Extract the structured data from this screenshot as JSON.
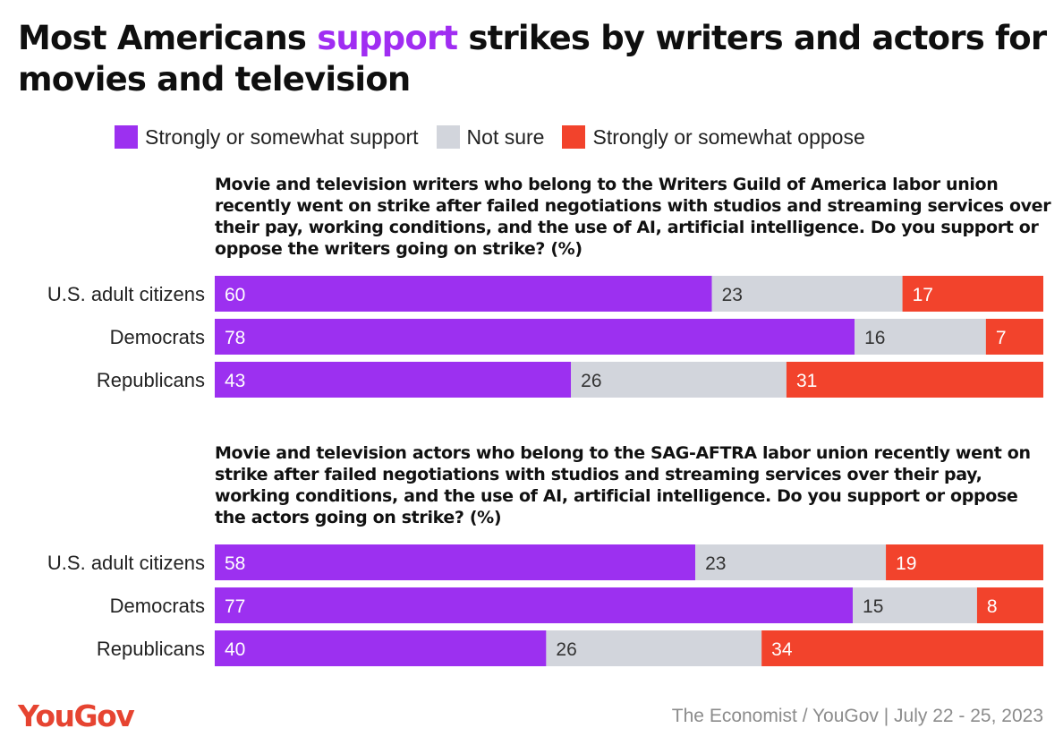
{
  "title": {
    "before": "Most Americans ",
    "accent": "support",
    "after": " strikes by writers and actors for movies and television"
  },
  "legend": [
    {
      "label": "Strongly or somewhat support",
      "color": "#9c30f0"
    },
    {
      "label": "Not sure",
      "color": "#d2d5dc"
    },
    {
      "label": "Strongly or somewhat oppose",
      "color": "#f2432c"
    }
  ],
  "chart_data": [
    {
      "type": "bar",
      "stacked": true,
      "orientation": "horizontal",
      "title": "Movie and television writers who belong to the Writers Guild of America labor union recently went on strike after failed negotiations with studios and streaming services over their pay, working conditions, and the use of AI, artificial intelligence. Do you support or oppose the writers going on strike? (%)",
      "categories": [
        "U.S. adult citizens",
        "Democrats",
        "Republicans"
      ],
      "series": [
        {
          "name": "Strongly or somewhat support",
          "values": [
            60,
            78,
            43
          ]
        },
        {
          "name": "Not sure",
          "values": [
            23,
            16,
            26
          ]
        },
        {
          "name": "Strongly or somewhat oppose",
          "values": [
            17,
            7,
            31
          ]
        }
      ]
    },
    {
      "type": "bar",
      "stacked": true,
      "orientation": "horizontal",
      "title": "Movie and television actors who belong to the SAG-AFTRA labor union recently went on strike after failed negotiations with studios and streaming services over their pay, working conditions, and the use of AI, artificial intelligence. Do you support or oppose the actors going on strike? (%)",
      "categories": [
        "U.S. adult citizens",
        "Democrats",
        "Republicans"
      ],
      "series": [
        {
          "name": "Strongly or somewhat support",
          "values": [
            58,
            77,
            40
          ]
        },
        {
          "name": "Not sure",
          "values": [
            23,
            15,
            26
          ]
        },
        {
          "name": "Strongly or somewhat oppose",
          "values": [
            19,
            8,
            34
          ]
        }
      ]
    }
  ],
  "logo": "YouGov",
  "source": "The Economist / YouGov | July 22 - 25, 2023"
}
